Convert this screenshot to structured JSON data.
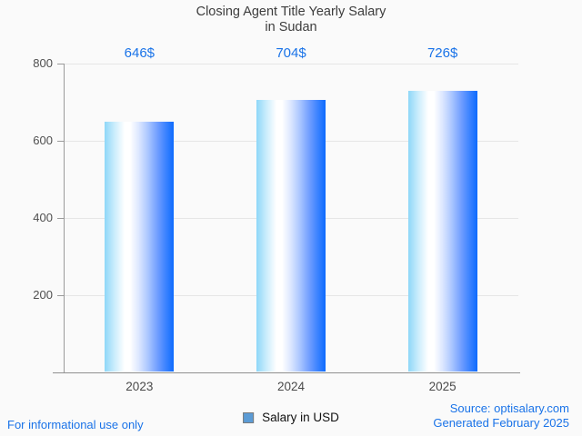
{
  "header": {
    "title_line1": "Closing Agent Title Yearly Salary",
    "title_line2": "in Sudan"
  },
  "chart_data": {
    "type": "bar",
    "title": "Closing Agent Title Yearly Salary in Sudan",
    "categories": [
      "2023",
      "2024",
      "2025"
    ],
    "series": [
      {
        "name": "Salary in USD",
        "values": [
          646,
          704,
          726
        ]
      }
    ],
    "value_labels": [
      "646$",
      "704$",
      "726$"
    ],
    "xlabel": "",
    "ylabel": "",
    "ylim": [
      0,
      800
    ],
    "y_ticks": [
      200,
      400,
      600,
      800
    ],
    "grid": true,
    "legend_position": "bottom-center"
  },
  "legend": {
    "label": "Salary in USD",
    "swatch_color": "#5b9bd5"
  },
  "footer": {
    "note": "For informational use only",
    "source": "Source: optisalary.com",
    "generated": "Generated February 2025"
  },
  "colors": {
    "background": "#fafafa",
    "title_text": "#3d3d3d",
    "axis_text": "#4f4f4f",
    "axis_line": "#9a9a9a",
    "gridline": "#e6e6e6",
    "value_label_blue": "#1a73e8",
    "footer_link_blue": "#1a73e8",
    "bar_gradient_left": "#8ed7f8",
    "bar_gradient_mid": "#ffffff",
    "bar_gradient_right": "#0d6bfe",
    "legend_swatch": "#5b9bd5"
  }
}
